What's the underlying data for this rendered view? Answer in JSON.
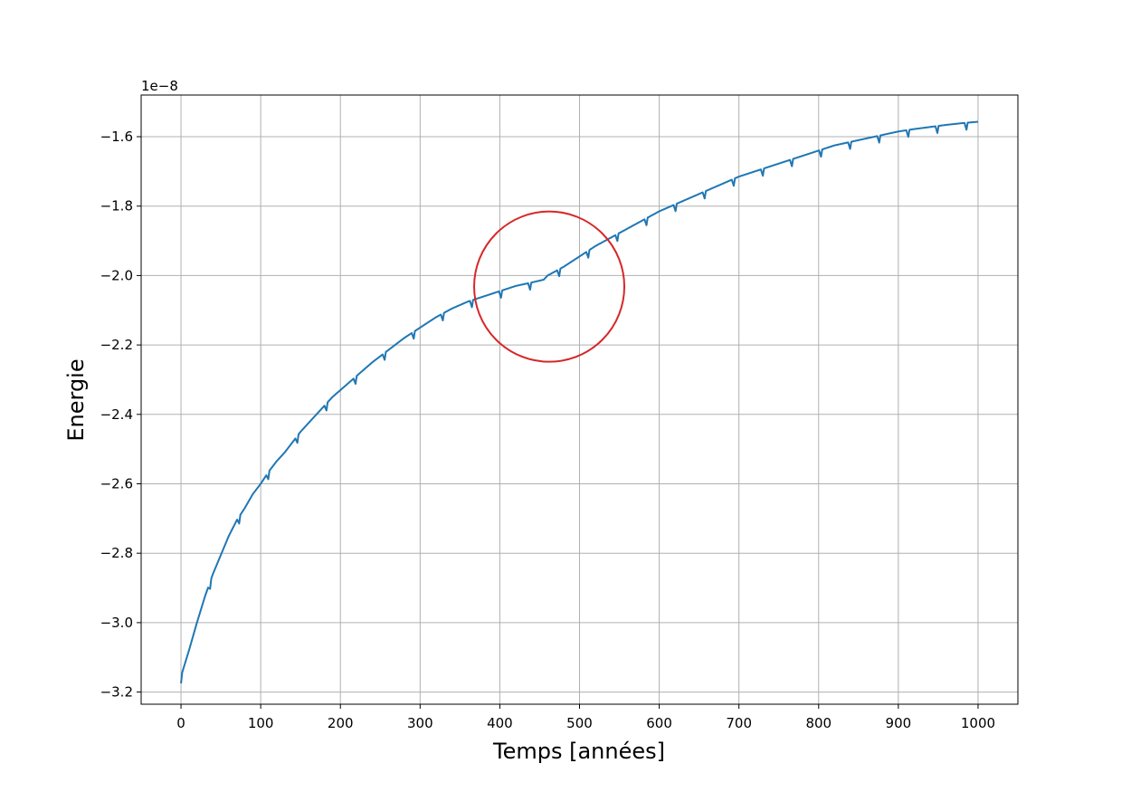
{
  "chart_data": {
    "type": "line",
    "title": "",
    "xlabel": "Temps [années]",
    "ylabel": "Energie",
    "y_offset_label": "1e−8",
    "xlim": [
      -50,
      1050
    ],
    "ylim": [
      -3.235,
      -1.48
    ],
    "y_scale_factor": 1e-08,
    "x_ticks": [
      0,
      100,
      200,
      300,
      400,
      500,
      600,
      700,
      800,
      900,
      1000
    ],
    "x_tick_labels": [
      "0",
      "100",
      "200",
      "300",
      "400",
      "500",
      "600",
      "700",
      "800",
      "900",
      "1000"
    ],
    "y_ticks": [
      -3.2,
      -3.0,
      -2.8,
      -2.6,
      -2.4,
      -2.2,
      -2.0,
      -1.8,
      -1.6
    ],
    "y_tick_labels": [
      "−3.2",
      "−3.0",
      "−2.8",
      "−2.6",
      "−2.4",
      "−2.2",
      "−2.0",
      "−1.8",
      "−1.6"
    ],
    "grid": true,
    "legend": "none",
    "series": [
      {
        "color": "#1f77b4",
        "x": [
          0,
          10,
          20,
          30,
          40,
          50,
          60,
          70,
          80,
          90,
          100,
          110,
          120,
          130,
          140,
          150,
          160,
          170,
          180,
          190,
          200,
          220,
          240,
          260,
          280,
          300,
          320,
          340,
          360,
          380,
          400,
          420,
          440,
          455,
          460,
          480,
          500,
          520,
          540,
          560,
          580,
          600,
          620,
          640,
          660,
          680,
          700,
          720,
          740,
          760,
          780,
          800,
          820,
          840,
          860,
          880,
          900,
          920,
          940,
          960,
          980,
          1000
        ],
        "y": [
          -3.155,
          -3.08,
          -3.0,
          -2.925,
          -2.86,
          -2.805,
          -2.75,
          -2.705,
          -2.67,
          -2.63,
          -2.6,
          -2.565,
          -2.535,
          -2.51,
          -2.48,
          -2.45,
          -2.425,
          -2.4,
          -2.375,
          -2.35,
          -2.33,
          -2.29,
          -2.25,
          -2.215,
          -2.18,
          -2.15,
          -2.12,
          -2.095,
          -2.075,
          -2.06,
          -2.045,
          -2.03,
          -2.02,
          -2.012,
          -2.0,
          -1.975,
          -1.945,
          -1.915,
          -1.89,
          -1.865,
          -1.84,
          -1.815,
          -1.795,
          -1.775,
          -1.755,
          -1.735,
          -1.715,
          -1.7,
          -1.685,
          -1.67,
          -1.655,
          -1.64,
          -1.625,
          -1.615,
          -1.605,
          -1.595,
          -1.585,
          -1.578,
          -1.572,
          -1.566,
          -1.561,
          -1.557
        ]
      }
    ],
    "annotations": [
      {
        "shape": "circle",
        "center_x": 462,
        "center_y": -2.032,
        "color": "#d62728"
      }
    ]
  }
}
